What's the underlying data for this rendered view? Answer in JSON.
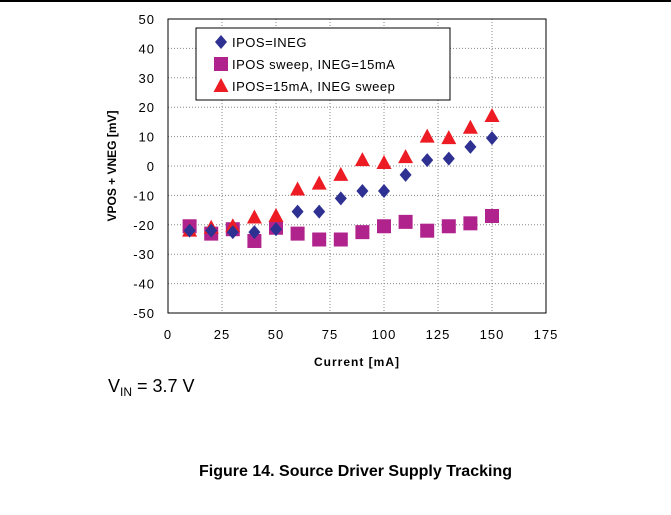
{
  "chart_data": {
    "type": "scatter",
    "xlabel": "Current [mA]",
    "ylabel": "VPOS + VNEG [mV]",
    "xlim": [
      0,
      175
    ],
    "ylim": [
      -50,
      50
    ],
    "xticks": [
      "0",
      "25",
      "50",
      "75",
      "100",
      "125",
      "150",
      "175"
    ],
    "yticks": [
      "50",
      "40",
      "30",
      "20",
      "10",
      "0",
      "-10",
      "-20",
      "-30",
      "-40",
      "-50"
    ],
    "grid": true,
    "legend_position": "top-left",
    "series": [
      {
        "name": "IPOS=INEG",
        "marker": "diamond",
        "color": "#2e3192",
        "x": [
          10,
          20,
          30,
          40,
          50,
          60,
          70,
          80,
          90,
          100,
          110,
          120,
          130,
          140,
          150
        ],
        "y": [
          -22,
          -22,
          -22.5,
          -22.5,
          -21.5,
          -15.5,
          -15.5,
          -11,
          -8.5,
          -8.5,
          -3,
          2,
          2.5,
          6.5,
          9.5
        ]
      },
      {
        "name": "IPOS sweep, INEG=15mA",
        "marker": "square",
        "color": "#b0228c",
        "x": [
          10,
          20,
          30,
          40,
          50,
          60,
          70,
          80,
          90,
          100,
          110,
          120,
          130,
          140,
          150
        ],
        "y": [
          -20.5,
          -23,
          -21.5,
          -25.5,
          -21,
          -23,
          -25,
          -25,
          -22.5,
          -20.5,
          -19,
          -22,
          -20.5,
          -19.5,
          -17
        ]
      },
      {
        "name": "IPOS=15mA, INEG sweep",
        "marker": "triangle",
        "color": "#ed1c24",
        "x": [
          10,
          20,
          30,
          40,
          50,
          60,
          70,
          80,
          90,
          100,
          110,
          120,
          130,
          140,
          150
        ],
        "y": [
          -22,
          -21,
          -20.5,
          -17.5,
          -17,
          -8,
          -6,
          -3,
          2,
          1,
          3,
          10,
          9.5,
          13,
          17
        ]
      }
    ]
  },
  "annotation": {
    "vin_main": "V",
    "vin_sub": "IN",
    "vin_value": " = 3.7 V"
  },
  "caption": "Figure 14. Source Driver Supply Tracking"
}
